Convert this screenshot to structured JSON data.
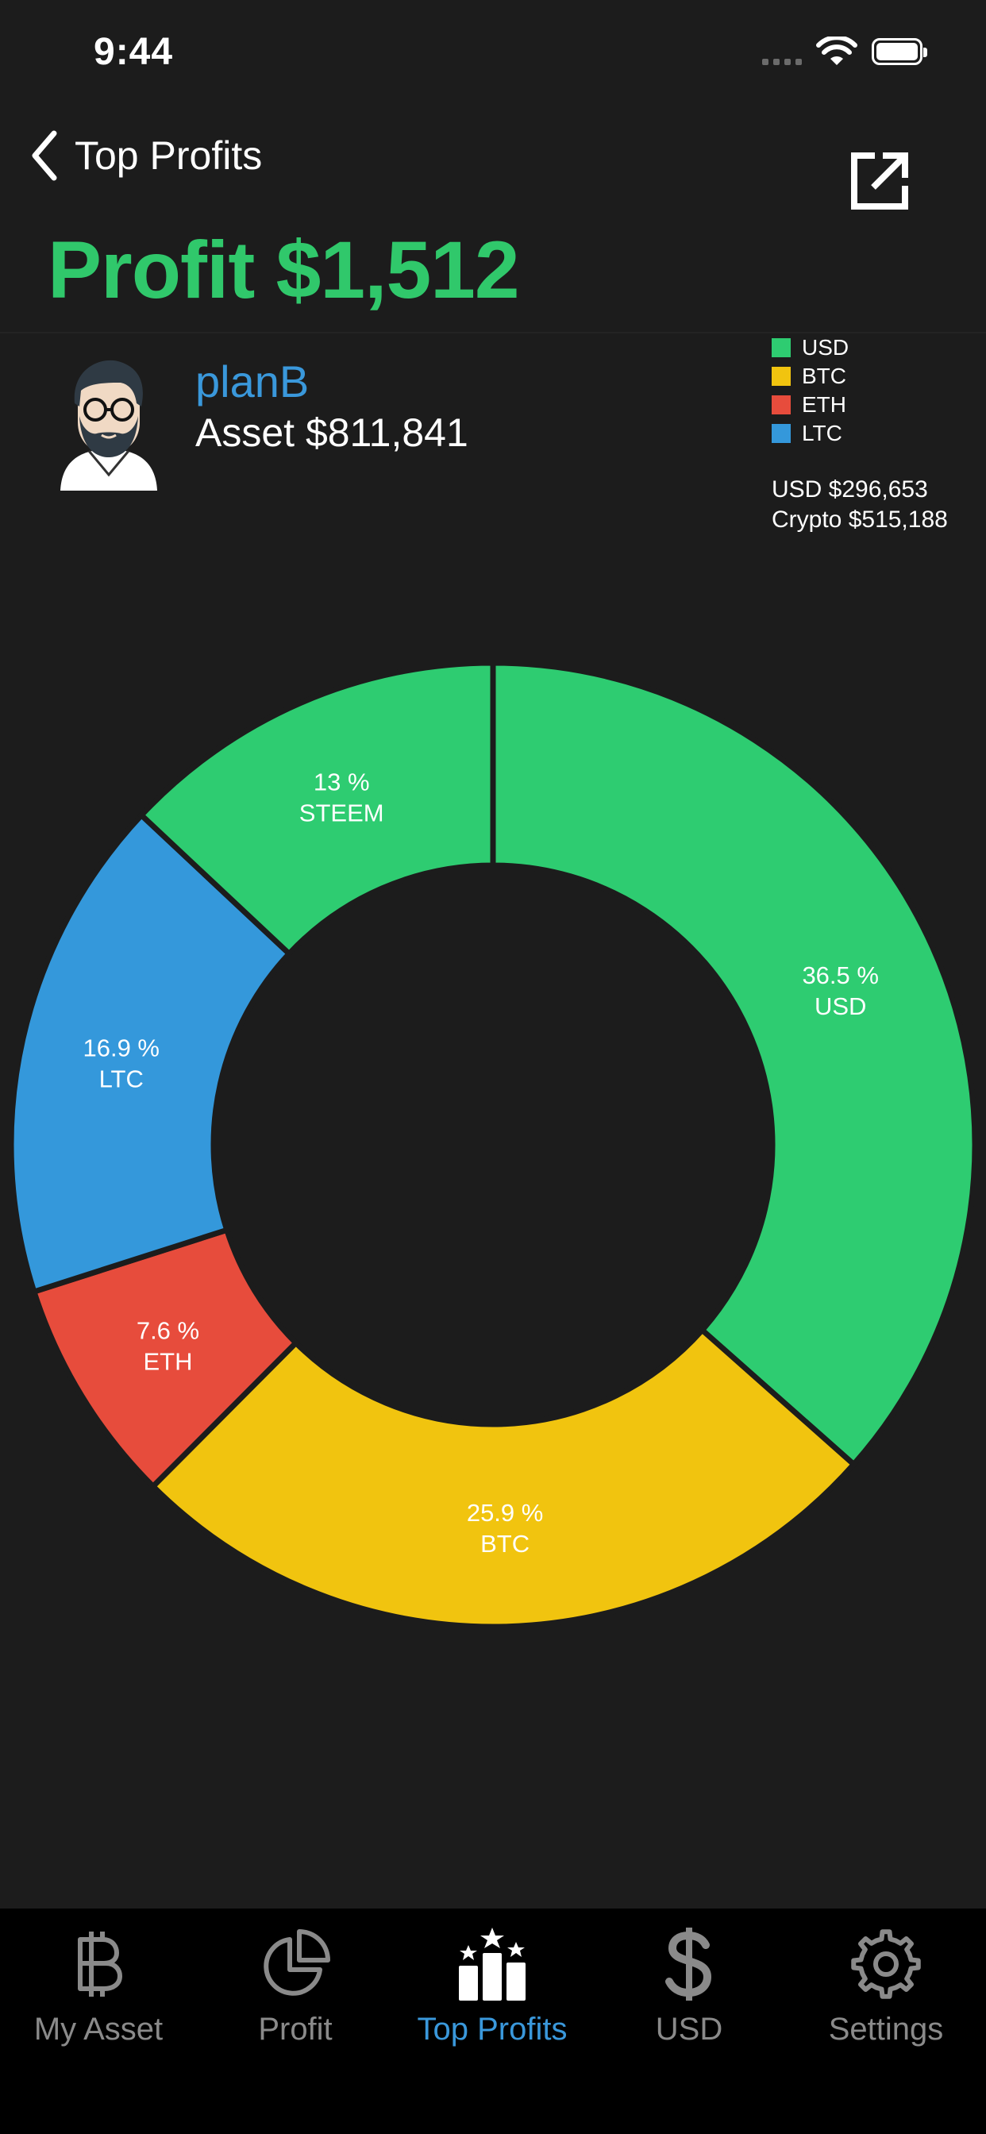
{
  "status_bar": {
    "time": "9:44"
  },
  "nav": {
    "back_label": "Top Profits"
  },
  "header": {
    "profit_text": "Profit $1,512"
  },
  "user": {
    "name": "planB",
    "asset_text": "Asset $811,841"
  },
  "legend": [
    {
      "label": "USD",
      "color": "#2ecc71"
    },
    {
      "label": "BTC",
      "color": "#f1c40f"
    },
    {
      "label": "ETH",
      "color": "#e74c3c"
    },
    {
      "label": "LTC",
      "color": "#3498db"
    }
  ],
  "totals": {
    "usd": "USD $296,653",
    "crypto": "Crypto $515,188"
  },
  "chart_data": {
    "type": "pie",
    "donut": true,
    "slices": [
      {
        "name": "USD",
        "percent": 36.5,
        "label": "36.5 %",
        "color": "#2ecc71"
      },
      {
        "name": "BTC",
        "percent": 25.9,
        "label": "25.9 %",
        "color": "#f1c40f"
      },
      {
        "name": "ETH",
        "percent": 7.6,
        "label": "7.6 %",
        "color": "#e74c3c"
      },
      {
        "name": "LTC",
        "percent": 16.9,
        "label": "16.9 %",
        "color": "#3498db"
      },
      {
        "name": "STEEM",
        "percent": 13,
        "label": "13 %",
        "color": "#2ecc71"
      }
    ]
  },
  "tabs": [
    {
      "label": "My Asset",
      "icon": "bitcoin-icon",
      "active": false
    },
    {
      "label": "Profit",
      "icon": "pie-chart-icon",
      "active": false
    },
    {
      "label": "Top Profits",
      "icon": "podium-icon",
      "active": true
    },
    {
      "label": "USD",
      "icon": "dollar-icon",
      "active": false
    },
    {
      "label": "Settings",
      "icon": "gear-icon",
      "active": false
    }
  ]
}
